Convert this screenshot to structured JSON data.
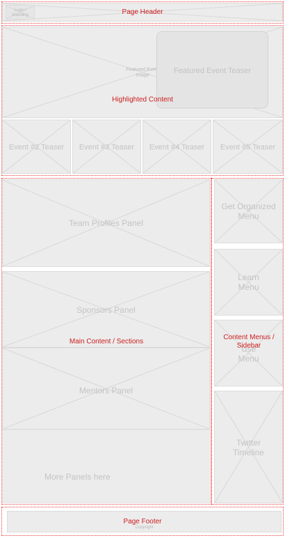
{
  "header": {
    "logo_label": "Logo / branding",
    "zone_label": "Page Header"
  },
  "highlighted": {
    "zone_label": "Highlighted Content",
    "featured_image_label": "Featured Event Image",
    "featured_teaser_label": "Featured Event Teaser",
    "teasers": [
      "Event #2 Teaser",
      "Event #3 Teaser",
      "Event #4 Teaser",
      "Event #5 Teaser"
    ]
  },
  "main": {
    "zone_label": "Main Content / Sections",
    "panels": [
      "Team Profiles Panel",
      "Sponsors Panel",
      "Mentors Panel",
      "More Panels here"
    ]
  },
  "sidebar": {
    "zone_label": "Content Menus / Sidebar",
    "menus": [
      "Get Organized Menu",
      "Learn Menu",
      "Use Menu",
      "Twitter Timeline"
    ]
  },
  "footer": {
    "zone_label": "Page Footer",
    "small_label": "Copyright"
  }
}
